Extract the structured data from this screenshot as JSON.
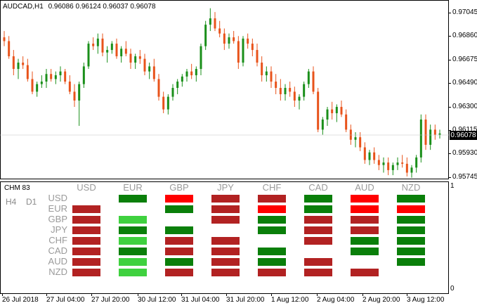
{
  "chart_title": {
    "symbol": "AUDCAD,H1",
    "ohlc": "0.96086 0.96124 0.96037 0.96078"
  },
  "price_axis": [
    "0.97045",
    "0.96860",
    "0.96675",
    "0.96490",
    "0.96300",
    "0.96115",
    "0.95930",
    "0.95745"
  ],
  "current_price": "0.96078",
  "indicator": {
    "name": "CHM 83",
    "timeframes": [
      "H4",
      "D1"
    ],
    "axis_top": "1",
    "axis_bottom": "0",
    "columns": [
      "USD",
      "EUR",
      "GBP",
      "JPY",
      "CHF",
      "CAD",
      "AUD",
      "NZD"
    ],
    "rows": [
      "USD",
      "EUR",
      "GBP",
      "JPY",
      "CHF",
      "CAD",
      "AUD",
      "NZD"
    ],
    "colors": {
      "G": "#0a7f0a",
      "L": "#3fd13f",
      "R": "#b22222",
      "B": "#ff0000"
    },
    "matrix": [
      [
        "",
        "G",
        "B",
        "R",
        "R",
        "G",
        "B",
        "G"
      ],
      [
        "R",
        "",
        "G",
        "R",
        "B",
        "G",
        "B",
        "B"
      ],
      [
        "R",
        "L",
        "",
        "R",
        "G",
        "R",
        "R",
        "G"
      ],
      [
        "R",
        "G",
        "G",
        "",
        "G",
        "R",
        "R",
        "G"
      ],
      [
        "R",
        "L",
        "R",
        "R",
        "",
        "R",
        "G",
        "G"
      ],
      [
        "R",
        "G",
        "R",
        "R",
        "G",
        "",
        "G",
        "G"
      ],
      [
        "R",
        "L",
        "G",
        "R",
        "G",
        "R",
        "",
        "G"
      ],
      [
        "R",
        "L",
        "R",
        "R",
        "R",
        "R",
        "R",
        ""
      ]
    ]
  },
  "time_axis": [
    "26 Jul 2018",
    "27 Jul 04:00",
    "27 Jul 20:00",
    "30 Jul 12:00",
    "31 Jul 04:00",
    "31 Jul 20:00",
    "1 Aug 12:00",
    "2 Aug 04:00",
    "2 Aug 20:00",
    "3 Aug 12:00"
  ],
  "chart_data": {
    "type": "candlestick",
    "series": [
      {
        "candles": [
          [
            0.9685,
            0.969,
            0.9678,
            0.9682
          ],
          [
            0.9682,
            0.9686,
            0.9668,
            0.967
          ],
          [
            0.967,
            0.9675,
            0.9655,
            0.966
          ],
          [
            0.966,
            0.9668,
            0.9652,
            0.9665
          ],
          [
            0.9665,
            0.967,
            0.966,
            0.9663
          ],
          [
            0.9663,
            0.9668,
            0.965,
            0.9652
          ],
          [
            0.9652,
            0.9658,
            0.964,
            0.9642
          ],
          [
            0.9642,
            0.965,
            0.9638,
            0.9648
          ],
          [
            0.9648,
            0.9655,
            0.9645,
            0.965
          ],
          [
            0.965,
            0.966,
            0.9645,
            0.9656
          ],
          [
            0.9656,
            0.966,
            0.965,
            0.9652
          ],
          [
            0.9652,
            0.9658,
            0.9648,
            0.9655
          ],
          [
            0.9655,
            0.9662,
            0.965,
            0.9658
          ],
          [
            0.9658,
            0.966,
            0.9648,
            0.965
          ],
          [
            0.965,
            0.9655,
            0.964,
            0.9642
          ],
          [
            0.9642,
            0.9648,
            0.963,
            0.9635
          ],
          [
            0.9635,
            0.965,
            0.9615,
            0.9648
          ],
          [
            0.9648,
            0.9665,
            0.9645,
            0.9662
          ],
          [
            0.9662,
            0.9682,
            0.966,
            0.968
          ],
          [
            0.968,
            0.9685,
            0.9675,
            0.9678
          ],
          [
            0.9678,
            0.9688,
            0.9672,
            0.9684
          ],
          [
            0.9684,
            0.9688,
            0.967,
            0.9673
          ],
          [
            0.9673,
            0.9678,
            0.9665,
            0.9675
          ],
          [
            0.9675,
            0.9682,
            0.9672,
            0.968
          ],
          [
            0.968,
            0.9684,
            0.9668,
            0.967
          ],
          [
            0.967,
            0.9678,
            0.9665,
            0.9676
          ],
          [
            0.9676,
            0.9682,
            0.967,
            0.9672
          ],
          [
            0.9672,
            0.9676,
            0.966,
            0.9665
          ],
          [
            0.9665,
            0.9672,
            0.966,
            0.967
          ],
          [
            0.967,
            0.9675,
            0.9664,
            0.9668
          ],
          [
            0.9668,
            0.9672,
            0.9655,
            0.9658
          ],
          [
            0.9658,
            0.9665,
            0.9652,
            0.9662
          ],
          [
            0.9662,
            0.9668,
            0.965,
            0.9652
          ],
          [
            0.9652,
            0.9656,
            0.9635,
            0.9638
          ],
          [
            0.9638,
            0.9642,
            0.9625,
            0.9628
          ],
          [
            0.9628,
            0.964,
            0.9624,
            0.9638
          ],
          [
            0.9638,
            0.9648,
            0.9635,
            0.9645
          ],
          [
            0.9645,
            0.9652,
            0.964,
            0.965
          ],
          [
            0.965,
            0.9656,
            0.9646,
            0.9654
          ],
          [
            0.9654,
            0.966,
            0.965,
            0.9658
          ],
          [
            0.9658,
            0.9664,
            0.9652,
            0.9655
          ],
          [
            0.9655,
            0.9662,
            0.965,
            0.966
          ],
          [
            0.966,
            0.968,
            0.9655,
            0.9678
          ],
          [
            0.9678,
            0.9698,
            0.9675,
            0.9695
          ],
          [
            0.9695,
            0.9708,
            0.969,
            0.97
          ],
          [
            0.97,
            0.9705,
            0.969,
            0.9692
          ],
          [
            0.9692,
            0.9698,
            0.9685,
            0.9688
          ],
          [
            0.9688,
            0.9692,
            0.9675,
            0.968
          ],
          [
            0.968,
            0.9688,
            0.9676,
            0.9685
          ],
          [
            0.9685,
            0.969,
            0.968,
            0.9682
          ],
          [
            0.9682,
            0.9686,
            0.966,
            0.9665
          ],
          [
            0.9665,
            0.9686,
            0.9662,
            0.9684
          ],
          [
            0.9684,
            0.9688,
            0.9676,
            0.968
          ],
          [
            0.968,
            0.9684,
            0.967,
            0.9675
          ],
          [
            0.9675,
            0.968,
            0.9662,
            0.9665
          ],
          [
            0.9665,
            0.967,
            0.965,
            0.9655
          ],
          [
            0.9655,
            0.9662,
            0.965,
            0.9658
          ],
          [
            0.9658,
            0.9662,
            0.9645,
            0.965
          ],
          [
            0.965,
            0.9656,
            0.964,
            0.9645
          ],
          [
            0.9645,
            0.9652,
            0.9635,
            0.964
          ],
          [
            0.964,
            0.9648,
            0.9635,
            0.9645
          ],
          [
            0.9645,
            0.965,
            0.9638,
            0.9642
          ],
          [
            0.9642,
            0.9646,
            0.963,
            0.9635
          ],
          [
            0.9635,
            0.964,
            0.9628,
            0.9638
          ],
          [
            0.9638,
            0.965,
            0.9635,
            0.9648
          ],
          [
            0.9648,
            0.966,
            0.9645,
            0.9658
          ],
          [
            0.9658,
            0.9662,
            0.964,
            0.9642
          ],
          [
            0.9642,
            0.9645,
            0.961,
            0.9612
          ],
          [
            0.9612,
            0.9622,
            0.9608,
            0.962
          ],
          [
            0.962,
            0.963,
            0.9615,
            0.9628
          ],
          [
            0.9628,
            0.9634,
            0.962,
            0.9625
          ],
          [
            0.9625,
            0.9632,
            0.9618,
            0.963
          ],
          [
            0.963,
            0.9635,
            0.9622,
            0.9624
          ],
          [
            0.9624,
            0.9628,
            0.961,
            0.9612
          ],
          [
            0.9612,
            0.9616,
            0.96,
            0.9604
          ],
          [
            0.9604,
            0.961,
            0.9598,
            0.9606
          ],
          [
            0.9606,
            0.961,
            0.9595,
            0.9598
          ],
          [
            0.9598,
            0.9602,
            0.9585,
            0.9588
          ],
          [
            0.9588,
            0.9596,
            0.9584,
            0.9594
          ],
          [
            0.9594,
            0.9598,
            0.9585,
            0.9588
          ],
          [
            0.9588,
            0.9592,
            0.958,
            0.9584
          ],
          [
            0.9584,
            0.959,
            0.9578,
            0.9586
          ],
          [
            0.9586,
            0.959,
            0.9576,
            0.958
          ],
          [
            0.958,
            0.9586,
            0.9576,
            0.9584
          ],
          [
            0.9584,
            0.959,
            0.958,
            0.9586
          ],
          [
            0.9586,
            0.9592,
            0.9582,
            0.9585
          ],
          [
            0.9585,
            0.959,
            0.9575,
            0.9578
          ],
          [
            0.9578,
            0.9584,
            0.9574,
            0.9582
          ],
          [
            0.9582,
            0.9592,
            0.9578,
            0.959
          ],
          [
            0.959,
            0.9624,
            0.9586,
            0.962
          ],
          [
            0.962,
            0.9624,
            0.9596,
            0.96
          ],
          [
            0.96,
            0.9616,
            0.9596,
            0.9612
          ],
          [
            0.9612,
            0.9616,
            0.9604,
            0.9608
          ],
          [
            0.9608,
            0.9612,
            0.9605,
            0.9609
          ]
        ]
      }
    ],
    "bull_color": "#1a8f1a",
    "bear_color": "#e8531b"
  }
}
